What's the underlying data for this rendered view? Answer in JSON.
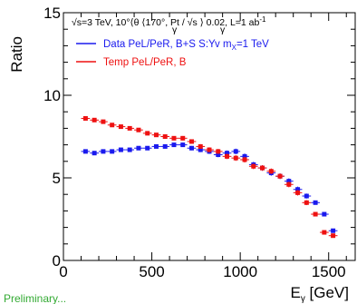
{
  "chart_data": {
    "type": "scatter",
    "xlabel": "E",
    "xlabel_sub": "γ",
    "xlabel_unit": " [GeV]",
    "ylabel": "Ratio",
    "xlim": [
      0,
      1650
    ],
    "ylim": [
      0,
      15
    ],
    "x_ticks": [
      0,
      500,
      1000,
      1500
    ],
    "x_tick_labels": [
      "0",
      "500",
      "1000",
      "1500"
    ],
    "y_ticks": [
      0,
      5,
      10,
      15
    ],
    "y_tick_labels": [
      "0",
      "5",
      "10",
      "15"
    ],
    "header": "√s=3 TeV, 10°⟨θ ⟨170°,  Pt / √s ⟩ 0.02, L=1 ab",
    "header_sub_gamma": "γ",
    "header_sup": "-1",
    "legend_position": "top-left",
    "x_bin_halfwidth": 25,
    "series": [
      {
        "name": "Data PeL/PeR, B+S  S:Yv m",
        "name_sub": "X",
        "name_suffix": "=1 TeV",
        "color": "#1a1aee",
        "marker": "square",
        "x": [
          125,
          175,
          225,
          275,
          325,
          375,
          425,
          475,
          525,
          575,
          625,
          675,
          725,
          775,
          825,
          875,
          925,
          975,
          1025,
          1075,
          1125,
          1175,
          1225,
          1275,
          1325,
          1375,
          1425,
          1475,
          1525
        ],
        "y": [
          6.6,
          6.5,
          6.6,
          6.6,
          6.7,
          6.7,
          6.8,
          6.8,
          6.9,
          6.9,
          7.0,
          7.0,
          6.8,
          6.7,
          6.6,
          6.4,
          6.5,
          6.6,
          6.3,
          5.8,
          5.6,
          5.3,
          5.1,
          4.8,
          4.3,
          3.9,
          3.5,
          2.8,
          1.8
        ],
        "yerr": [
          0.1,
          0.1,
          0.1,
          0.1,
          0.1,
          0.1,
          0.1,
          0.1,
          0.1,
          0.12,
          0.12,
          0.13,
          0.13,
          0.14,
          0.15,
          0.15,
          0.16,
          0.17,
          0.17,
          0.17,
          0.17,
          0.17,
          0.17,
          0.17,
          0.17,
          0.15,
          0.12,
          0.1,
          0.1
        ]
      },
      {
        "name": "Temp PeL/PeR, B",
        "color": "#ee1111",
        "marker": "square",
        "x": [
          125,
          175,
          225,
          275,
          325,
          375,
          425,
          475,
          525,
          575,
          625,
          675,
          725,
          775,
          825,
          875,
          925,
          975,
          1025,
          1075,
          1125,
          1175,
          1225,
          1275,
          1325,
          1375,
          1425,
          1475,
          1525
        ],
        "y": [
          8.6,
          8.5,
          8.4,
          8.2,
          8.1,
          8.0,
          7.9,
          7.7,
          7.6,
          7.5,
          7.4,
          7.4,
          7.2,
          6.9,
          6.7,
          6.6,
          6.3,
          6.2,
          6.1,
          5.7,
          5.6,
          5.4,
          5.1,
          4.6,
          4.1,
          3.5,
          2.8,
          1.7,
          1.5
        ],
        "yerr": [
          0.1,
          0.1,
          0.1,
          0.1,
          0.1,
          0.1,
          0.1,
          0.1,
          0.1,
          0.12,
          0.12,
          0.13,
          0.13,
          0.14,
          0.15,
          0.15,
          0.16,
          0.17,
          0.17,
          0.17,
          0.17,
          0.17,
          0.17,
          0.17,
          0.17,
          0.15,
          0.12,
          0.1,
          0.1
        ]
      }
    ],
    "bottom_note": "Preliminary..."
  }
}
